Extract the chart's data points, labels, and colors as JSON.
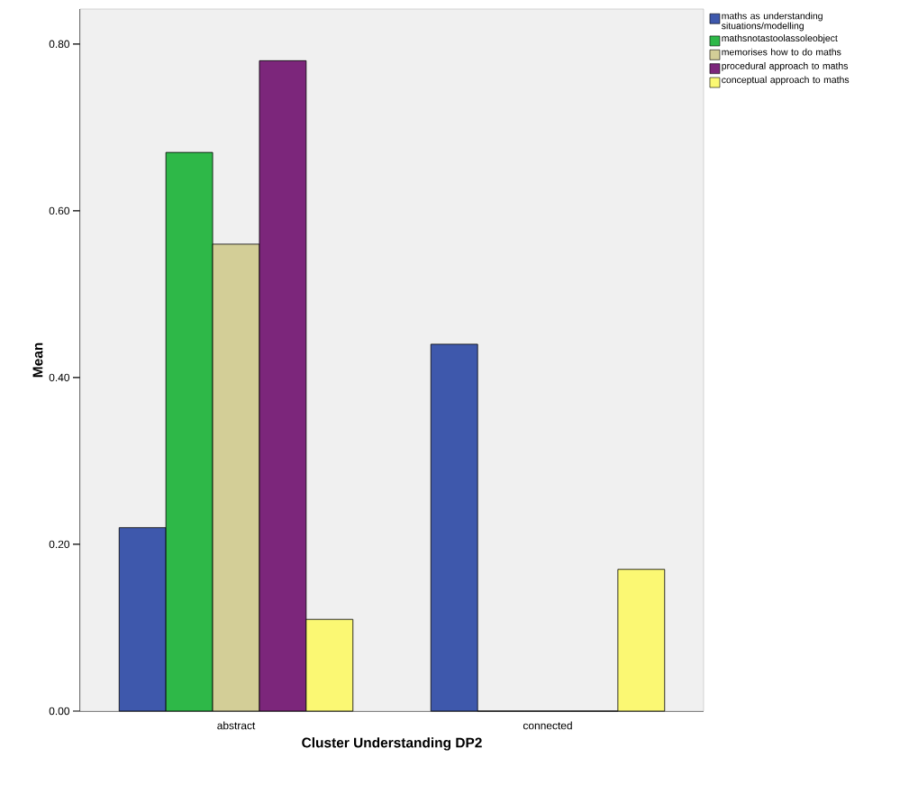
{
  "chart_data": {
    "type": "bar",
    "xlabel": "Cluster Understanding DP2",
    "ylabel": "Mean",
    "categories": [
      "abstract",
      "connected"
    ],
    "series": [
      {
        "name": "maths as understanding situations/modelling",
        "color": "#3e58ac",
        "values": [
          0.22,
          0.44
        ]
      },
      {
        "name": "mathsnotastoolassoleobject",
        "color": "#2eb848",
        "values": [
          0.67,
          0
        ]
      },
      {
        "name": "memorises how to do maths",
        "color": "#d3ce97",
        "values": [
          0.56,
          0
        ]
      },
      {
        "name": "procedural approach to maths",
        "color": "#7c267b",
        "values": [
          0.78,
          0
        ]
      },
      {
        "name": "conceptual approach to maths",
        "color": "#fbf873",
        "values": [
          0.11,
          0.17
        ]
      }
    ],
    "ylim": [
      0,
      0.842
    ],
    "yticks": [
      {
        "value": 0,
        "label": "0.00"
      },
      {
        "value": 0.2,
        "label": "0.20"
      },
      {
        "value": 0.4,
        "label": "0.40"
      },
      {
        "value": 0.6,
        "label": "0.60"
      },
      {
        "value": 0.8,
        "label": "0.80"
      }
    ],
    "legend": "top right"
  }
}
